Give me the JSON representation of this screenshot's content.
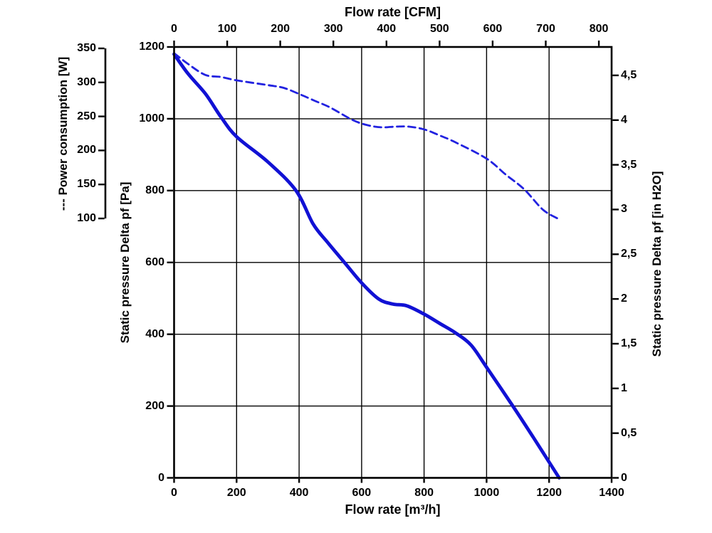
{
  "chart_data": {
    "type": "line",
    "axes": {
      "top": {
        "label": "Flow rate [CFM]",
        "unit": "CFM",
        "min": 0,
        "max": 800,
        "ticks": [
          0,
          100,
          200,
          300,
          400,
          500,
          600,
          700,
          800
        ]
      },
      "bottom": {
        "label": "Flow rate [m³/h]",
        "unit": "m³/h",
        "min": 0,
        "max": 1400,
        "ticks": [
          0,
          200,
          400,
          600,
          800,
          1000,
          1200,
          1400
        ]
      },
      "left_pa": {
        "label": "Static pressure Delta pf [Pa]",
        "unit": "Pa",
        "min": 0,
        "max": 1200,
        "ticks": [
          0,
          200,
          400,
          600,
          800,
          1000,
          1200
        ]
      },
      "left_power": {
        "label": "--- Power consumption [W]",
        "unit": "W",
        "min": 100,
        "max": 350,
        "ticks": [
          100,
          150,
          200,
          250,
          300,
          350
        ]
      },
      "right": {
        "label": "Static pressure Delta pf [in H2O]",
        "unit": "in H2O",
        "min": 0,
        "max": 4.5,
        "tick_values": [
          0,
          0.5,
          1,
          1.5,
          2,
          2.5,
          3,
          3.5,
          4,
          4.5
        ],
        "tick_labels": [
          "0",
          "0,5",
          "1",
          "1,5",
          "2",
          "2,5",
          "3",
          "3,5",
          "4",
          "4,5"
        ]
      }
    },
    "grid": {
      "x_step": 200,
      "y_step": 200,
      "color": "#000000"
    },
    "conversions": {
      "cfm_to_m3h": 1.699,
      "inh2o_to_pa": 249.089
    },
    "series": [
      {
        "name": "Static pressure Delta pf",
        "x_unit": "m³/h",
        "y_unit": "Pa",
        "style": "solid",
        "color": "#1111d4",
        "width": 4.8,
        "points": [
          [
            0,
            1180
          ],
          [
            45,
            1125
          ],
          [
            100,
            1070
          ],
          [
            150,
            1005
          ],
          [
            200,
            950
          ],
          [
            300,
            880
          ],
          [
            390,
            800
          ],
          [
            445,
            707
          ],
          [
            490,
            657
          ],
          [
            545,
            600
          ],
          [
            600,
            543
          ],
          [
            655,
            498
          ],
          [
            700,
            484
          ],
          [
            745,
            479
          ],
          [
            800,
            456
          ],
          [
            850,
            430
          ],
          [
            900,
            404
          ],
          [
            950,
            370
          ],
          [
            1000,
            308
          ],
          [
            1084,
            200
          ],
          [
            1150,
            112
          ],
          [
            1232,
            0
          ]
        ]
      },
      {
        "name": "Power consumption",
        "x_unit": "m³/h",
        "y_unit": "W",
        "style": "dashed",
        "color": "#2222e0",
        "width": 2.8,
        "dash": [
          10,
          6
        ],
        "points": [
          [
            0,
            343
          ],
          [
            45,
            327
          ],
          [
            100,
            311
          ],
          [
            150,
            308
          ],
          [
            200,
            303
          ],
          [
            300,
            296
          ],
          [
            350,
            292
          ],
          [
            400,
            283
          ],
          [
            450,
            273
          ],
          [
            500,
            263
          ],
          [
            570,
            245
          ],
          [
            620,
            237
          ],
          [
            665,
            234
          ],
          [
            710,
            235
          ],
          [
            750,
            235
          ],
          [
            800,
            231
          ],
          [
            850,
            222
          ],
          [
            900,
            212
          ],
          [
            1000,
            188
          ],
          [
            1060,
            165
          ],
          [
            1120,
            143
          ],
          [
            1180,
            113
          ],
          [
            1227,
            100
          ]
        ]
      }
    ]
  }
}
